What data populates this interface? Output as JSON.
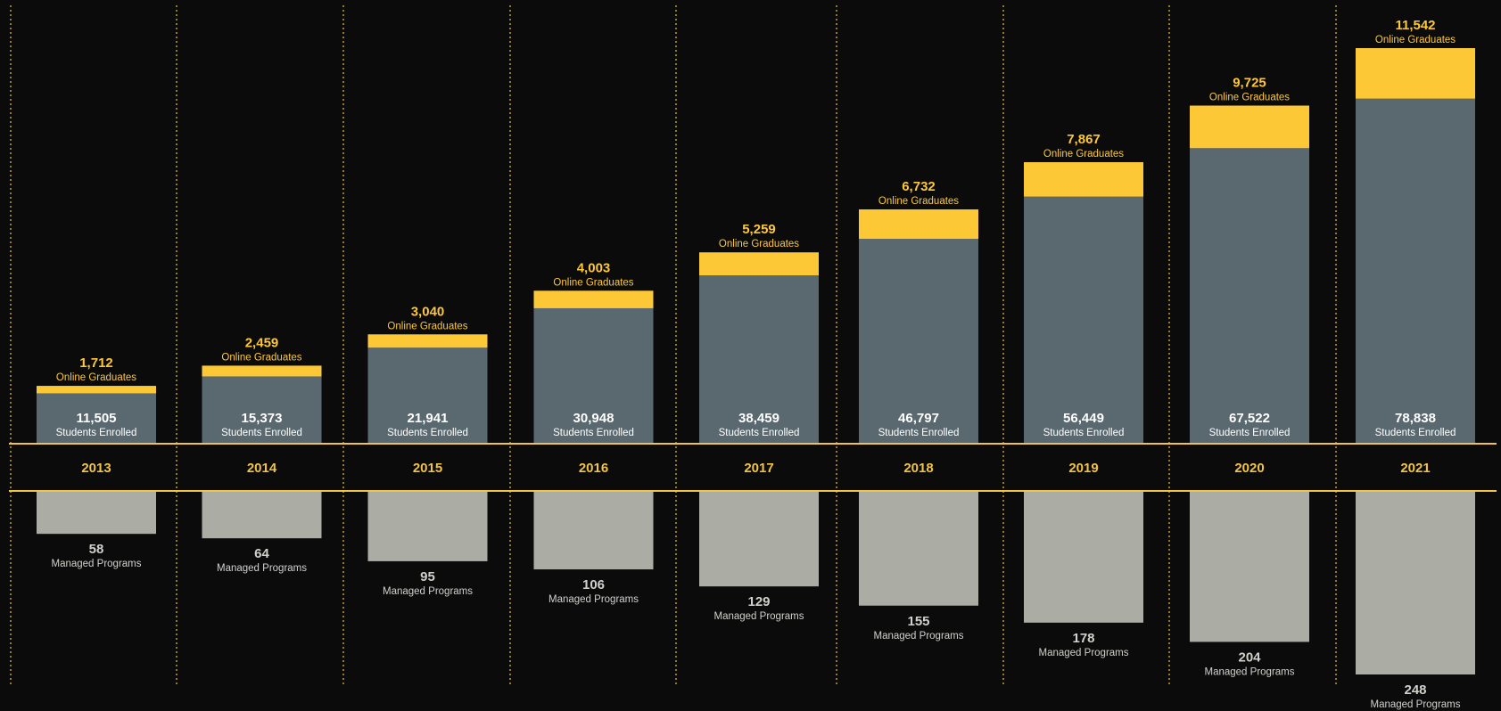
{
  "chart_data": {
    "type": "bar",
    "stacked": true,
    "categories": [
      "2013",
      "2014",
      "2015",
      "2016",
      "2017",
      "2018",
      "2019",
      "2020",
      "2021"
    ],
    "series": [
      {
        "name": "Students Enrolled",
        "values": [
          11505,
          15373,
          21941,
          30948,
          38459,
          46797,
          56449,
          67522,
          78838
        ],
        "labels": [
          "11,505",
          "15,373",
          "21,941",
          "30,948",
          "38,459",
          "46,797",
          "56,449",
          "67,522",
          "78,838"
        ]
      },
      {
        "name": "Online Graduates",
        "values": [
          1712,
          2459,
          3040,
          4003,
          5259,
          6732,
          7867,
          9725,
          11542
        ],
        "labels": [
          "1,712",
          "2,459",
          "3,040",
          "4,003",
          "5,259",
          "6,732",
          "7,867",
          "9,725",
          "11,542"
        ]
      },
      {
        "name": "Managed Programs",
        "values": [
          58,
          64,
          95,
          106,
          129,
          155,
          178,
          204,
          248
        ],
        "labels": [
          "58",
          "64",
          "95",
          "106",
          "129",
          "155",
          "178",
          "204",
          "248"
        ]
      }
    ],
    "ylim_upper": [
      0,
      90380
    ],
    "ylim_lower": [
      0,
      248
    ],
    "grid": false,
    "colors": {
      "background": "#0b0b0b",
      "enrolled": "#5a6870",
      "graduates": "#fdc836",
      "programs": "#abaca4",
      "accent_line": "#f2c443",
      "enrolled_text": "#ffffff",
      "programs_text": "#d0d0cc"
    }
  }
}
